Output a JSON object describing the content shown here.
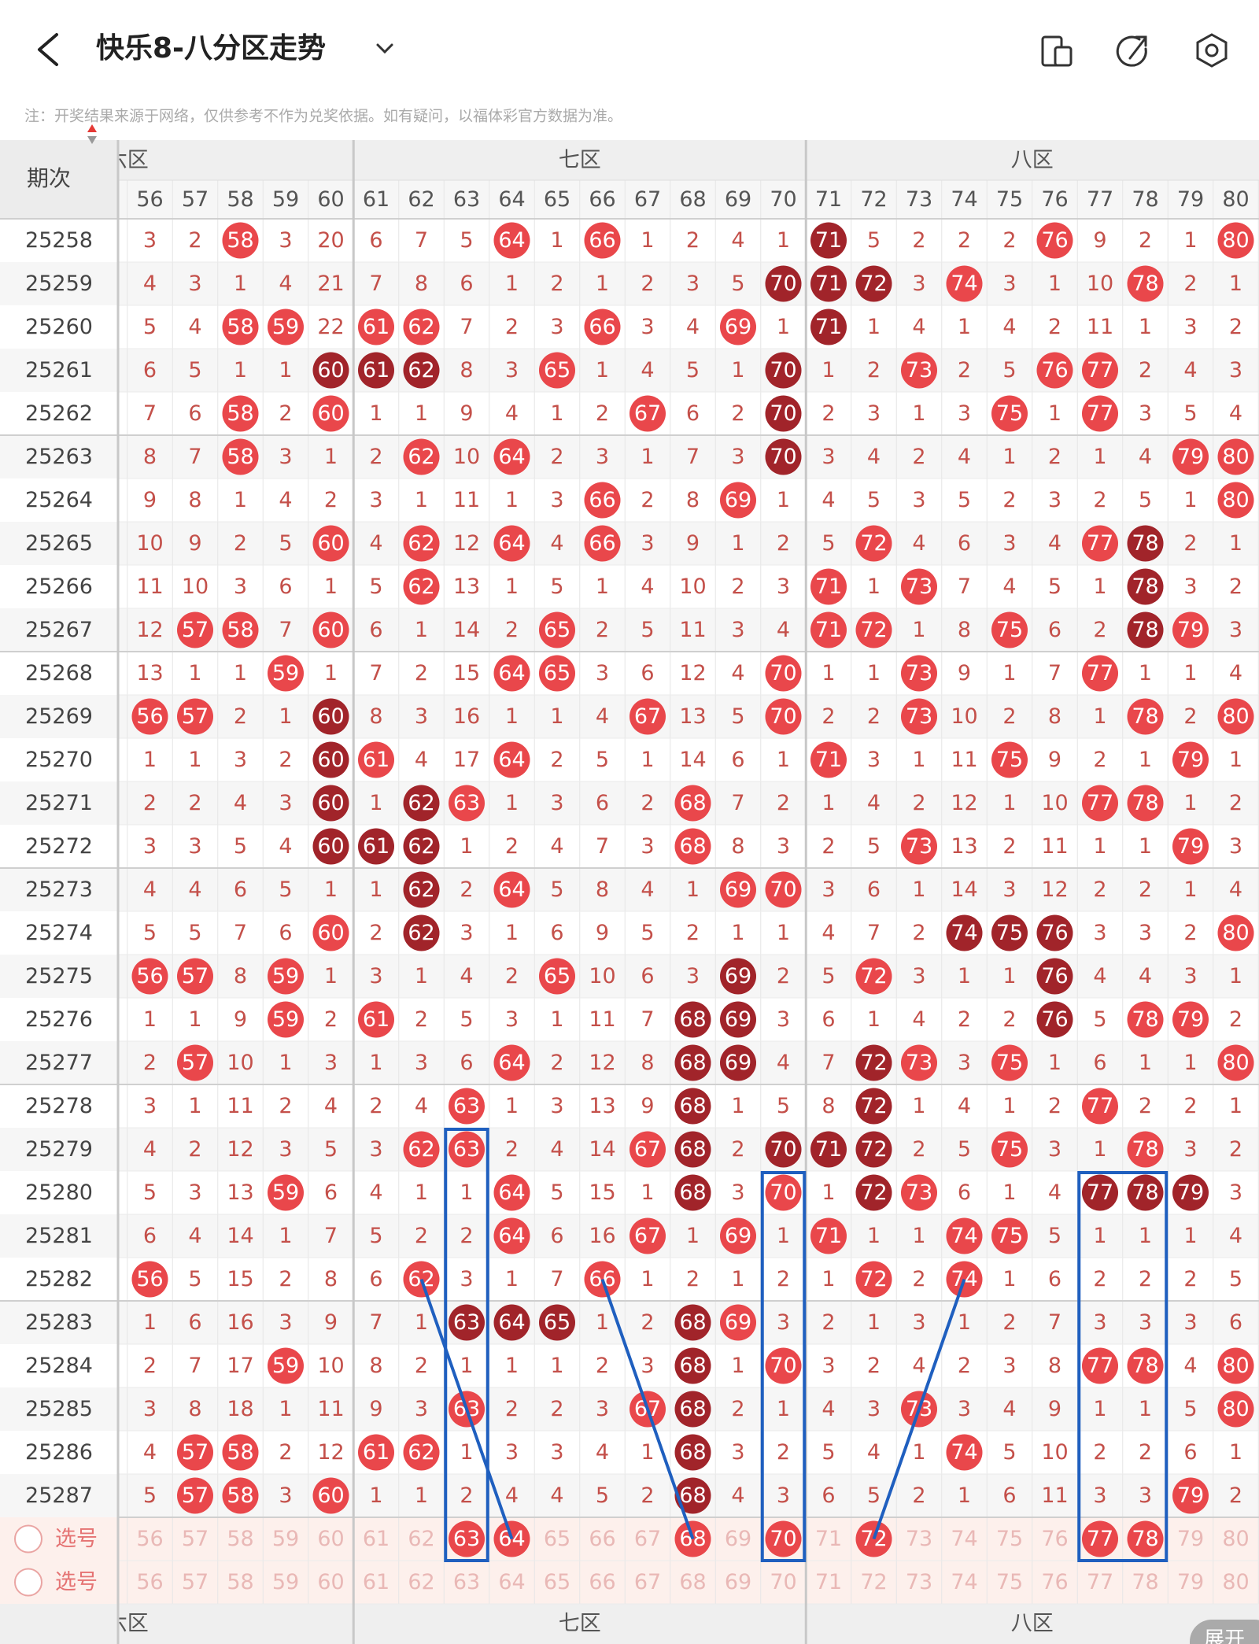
{
  "header": {
    "title": "快乐8-八分区走势"
  },
  "note": "注：开奖结果来源于网络，仅供参考不作为兑奖依据。如有疑问，以福体彩官方数据为准。",
  "table": {
    "period_label": "期次",
    "zones": [
      {
        "name": "六区"
      },
      {
        "name": "七区"
      },
      {
        "name": "八区"
      }
    ],
    "columns": [
      56,
      57,
      58,
      59,
      60,
      61,
      62,
      63,
      64,
      65,
      66,
      67,
      68,
      69,
      70,
      71,
      72,
      73,
      74,
      75,
      76,
      77,
      78,
      79,
      80
    ],
    "rows": [
      {
        "period": "25258",
        "values": [
          3,
          2,
          58,
          3,
          20,
          6,
          7,
          5,
          64,
          1,
          66,
          1,
          2,
          4,
          1,
          71,
          5,
          2,
          2,
          2,
          76,
          9,
          2,
          1,
          80
        ],
        "red": [
          58,
          64,
          66,
          76,
          80
        ],
        "dark": [
          71
        ]
      },
      {
        "period": "25259",
        "values": [
          4,
          3,
          1,
          4,
          21,
          7,
          8,
          6,
          1,
          2,
          1,
          2,
          3,
          5,
          70,
          71,
          72,
          3,
          74,
          3,
          1,
          10,
          78,
          2,
          1
        ],
        "red": [
          74,
          78
        ],
        "dark": [
          70,
          71,
          72
        ]
      },
      {
        "period": "25260",
        "values": [
          5,
          4,
          58,
          59,
          22,
          61,
          62,
          7,
          2,
          3,
          66,
          3,
          4,
          69,
          1,
          71,
          1,
          4,
          1,
          4,
          2,
          11,
          1,
          3,
          2
        ],
        "red": [
          58,
          59,
          61,
          62,
          66,
          69
        ],
        "dark": [
          71
        ]
      },
      {
        "period": "25261",
        "values": [
          6,
          5,
          1,
          1,
          60,
          61,
          62,
          8,
          3,
          65,
          1,
          4,
          5,
          1,
          70,
          1,
          2,
          73,
          2,
          5,
          76,
          77,
          2,
          4,
          3
        ],
        "red": [
          65,
          73,
          76,
          77
        ],
        "dark": [
          60,
          61,
          62,
          70
        ]
      },
      {
        "period": "25262",
        "values": [
          7,
          6,
          58,
          2,
          60,
          1,
          1,
          9,
          4,
          1,
          2,
          67,
          6,
          2,
          70,
          2,
          3,
          1,
          3,
          75,
          1,
          77,
          3,
          5,
          4
        ],
        "red": [
          58,
          60,
          67,
          75,
          77
        ],
        "dark": [
          70
        ]
      },
      {
        "period": "25263",
        "values": [
          8,
          7,
          58,
          3,
          1,
          2,
          62,
          10,
          64,
          2,
          3,
          1,
          7,
          3,
          70,
          3,
          4,
          2,
          4,
          1,
          2,
          1,
          4,
          79,
          80
        ],
        "red": [
          58,
          62,
          64,
          79,
          80
        ],
        "dark": [
          70
        ]
      },
      {
        "period": "25264",
        "values": [
          9,
          8,
          1,
          4,
          2,
          3,
          1,
          11,
          1,
          3,
          66,
          2,
          8,
          69,
          1,
          4,
          5,
          3,
          5,
          2,
          3,
          2,
          5,
          1,
          80
        ],
        "red": [
          66,
          69,
          80
        ],
        "dark": []
      },
      {
        "period": "25265",
        "values": [
          10,
          9,
          2,
          5,
          60,
          4,
          62,
          12,
          64,
          4,
          66,
          3,
          9,
          1,
          2,
          5,
          72,
          4,
          6,
          3,
          4,
          77,
          78,
          2,
          1
        ],
        "red": [
          60,
          62,
          64,
          66,
          72,
          77
        ],
        "dark": [
          78
        ]
      },
      {
        "period": "25266",
        "values": [
          11,
          10,
          3,
          6,
          1,
          5,
          62,
          13,
          1,
          5,
          1,
          4,
          10,
          2,
          3,
          71,
          1,
          73,
          7,
          4,
          5,
          1,
          78,
          3,
          2
        ],
        "red": [
          62,
          71,
          73
        ],
        "dark": [
          78
        ]
      },
      {
        "period": "25267",
        "values": [
          12,
          57,
          58,
          7,
          60,
          6,
          1,
          14,
          2,
          65,
          2,
          5,
          11,
          3,
          4,
          71,
          72,
          1,
          8,
          75,
          6,
          2,
          78,
          79,
          3
        ],
        "red": [
          57,
          58,
          60,
          65,
          71,
          72,
          75,
          79
        ],
        "dark": [
          78
        ]
      },
      {
        "period": "25268",
        "values": [
          13,
          1,
          1,
          59,
          1,
          7,
          2,
          15,
          64,
          65,
          3,
          6,
          12,
          4,
          70,
          1,
          1,
          73,
          9,
          1,
          7,
          77,
          1,
          1,
          4
        ],
        "red": [
          59,
          64,
          65,
          70,
          73,
          77
        ],
        "dark": []
      },
      {
        "period": "25269",
        "values": [
          56,
          57,
          2,
          1,
          60,
          8,
          3,
          16,
          1,
          1,
          4,
          67,
          13,
          5,
          70,
          2,
          2,
          73,
          10,
          2,
          8,
          1,
          78,
          2,
          80
        ],
        "red": [
          56,
          57,
          67,
          70,
          73,
          78,
          80
        ],
        "dark": [
          60
        ]
      },
      {
        "period": "25270",
        "values": [
          1,
          1,
          3,
          2,
          60,
          61,
          4,
          17,
          64,
          2,
          5,
          1,
          14,
          6,
          1,
          71,
          3,
          1,
          11,
          75,
          9,
          2,
          1,
          79,
          1
        ],
        "red": [
          61,
          64,
          71,
          75,
          79
        ],
        "dark": [
          60
        ]
      },
      {
        "period": "25271",
        "values": [
          2,
          2,
          4,
          3,
          60,
          1,
          62,
          63,
          1,
          3,
          6,
          2,
          68,
          7,
          2,
          1,
          4,
          2,
          12,
          1,
          10,
          77,
          78,
          1,
          2
        ],
        "red": [
          63,
          68,
          77,
          78
        ],
        "dark": [
          60,
          62
        ]
      },
      {
        "period": "25272",
        "values": [
          3,
          3,
          5,
          4,
          60,
          61,
          62,
          1,
          2,
          4,
          7,
          3,
          68,
          8,
          3,
          2,
          5,
          73,
          13,
          2,
          11,
          1,
          1,
          79,
          3
        ],
        "red": [
          68,
          73,
          79
        ],
        "dark": [
          60,
          61,
          62
        ]
      },
      {
        "period": "25273",
        "values": [
          4,
          4,
          6,
          5,
          1,
          1,
          62,
          2,
          64,
          5,
          8,
          4,
          1,
          69,
          70,
          3,
          6,
          1,
          14,
          3,
          12,
          2,
          2,
          1,
          4
        ],
        "red": [
          64,
          69,
          70
        ],
        "dark": [
          62
        ]
      },
      {
        "period": "25274",
        "values": [
          5,
          5,
          7,
          6,
          60,
          2,
          62,
          3,
          1,
          6,
          9,
          5,
          2,
          1,
          1,
          4,
          7,
          2,
          74,
          75,
          76,
          3,
          3,
          2,
          80
        ],
        "red": [
          60,
          80
        ],
        "dark": [
          62,
          74,
          75,
          76
        ]
      },
      {
        "period": "25275",
        "values": [
          56,
          57,
          8,
          59,
          1,
          3,
          1,
          4,
          2,
          65,
          10,
          6,
          3,
          69,
          2,
          5,
          72,
          3,
          1,
          1,
          76,
          4,
          4,
          3,
          1
        ],
        "red": [
          56,
          57,
          59,
          65,
          72
        ],
        "dark": [
          69,
          76
        ]
      },
      {
        "period": "25276",
        "values": [
          1,
          1,
          9,
          59,
          2,
          61,
          2,
          5,
          3,
          1,
          11,
          7,
          68,
          69,
          3,
          6,
          1,
          4,
          2,
          2,
          76,
          5,
          78,
          79,
          2
        ],
        "red": [
          59,
          61,
          78,
          79
        ],
        "dark": [
          68,
          69,
          76
        ]
      },
      {
        "period": "25277",
        "values": [
          2,
          57,
          10,
          1,
          3,
          1,
          3,
          6,
          64,
          2,
          12,
          8,
          68,
          69,
          4,
          7,
          72,
          73,
          3,
          75,
          1,
          6,
          1,
          1,
          80
        ],
        "red": [
          57,
          64,
          73,
          75,
          80
        ],
        "dark": [
          68,
          69,
          72
        ]
      },
      {
        "period": "25278",
        "values": [
          3,
          1,
          11,
          2,
          4,
          2,
          4,
          63,
          1,
          3,
          13,
          9,
          68,
          1,
          5,
          8,
          72,
          1,
          4,
          1,
          2,
          77,
          2,
          2,
          1
        ],
        "red": [
          63,
          77
        ],
        "dark": [
          68,
          72
        ]
      },
      {
        "period": "25279",
        "values": [
          4,
          2,
          12,
          3,
          5,
          3,
          62,
          63,
          2,
          4,
          14,
          67,
          68,
          2,
          70,
          71,
          72,
          2,
          5,
          75,
          3,
          1,
          78,
          3,
          2
        ],
        "red": [
          62,
          63,
          67,
          75,
          78
        ],
        "dark": [
          68,
          70,
          71,
          72
        ]
      },
      {
        "period": "25280",
        "values": [
          5,
          3,
          13,
          59,
          6,
          4,
          1,
          1,
          64,
          5,
          15,
          1,
          68,
          3,
          70,
          1,
          72,
          73,
          6,
          1,
          4,
          77,
          78,
          79,
          3
        ],
        "red": [
          59,
          64,
          70,
          73
        ],
        "dark": [
          68,
          72,
          77,
          78,
          79
        ]
      },
      {
        "period": "25281",
        "values": [
          6,
          4,
          14,
          1,
          7,
          5,
          2,
          2,
          64,
          6,
          16,
          67,
          1,
          69,
          1,
          71,
          1,
          1,
          74,
          75,
          5,
          1,
          1,
          1,
          4
        ],
        "red": [
          64,
          67,
          69,
          71,
          74,
          75
        ],
        "dark": []
      },
      {
        "period": "25282",
        "values": [
          56,
          5,
          15,
          2,
          8,
          6,
          62,
          3,
          1,
          7,
          66,
          1,
          2,
          1,
          2,
          1,
          72,
          2,
          74,
          1,
          6,
          2,
          2,
          2,
          5
        ],
        "red": [
          56,
          62,
          66,
          72,
          74
        ],
        "dark": []
      },
      {
        "period": "25283",
        "values": [
          1,
          6,
          16,
          3,
          9,
          7,
          1,
          63,
          64,
          65,
          1,
          2,
          68,
          69,
          3,
          2,
          1,
          3,
          1,
          2,
          7,
          3,
          3,
          3,
          6
        ],
        "red": [
          69
        ],
        "dark": [
          63,
          64,
          65,
          68
        ]
      },
      {
        "period": "25284",
        "values": [
          2,
          7,
          17,
          59,
          10,
          8,
          2,
          1,
          1,
          1,
          2,
          3,
          68,
          1,
          70,
          3,
          2,
          4,
          2,
          3,
          8,
          77,
          78,
          4,
          80
        ],
        "red": [
          59,
          70,
          77,
          78,
          80
        ],
        "dark": [
          68
        ]
      },
      {
        "period": "25285",
        "values": [
          3,
          8,
          18,
          1,
          11,
          9,
          3,
          63,
          2,
          2,
          3,
          67,
          68,
          2,
          1,
          4,
          3,
          73,
          3,
          4,
          9,
          1,
          1,
          5,
          80
        ],
        "red": [
          63,
          67,
          73,
          80
        ],
        "dark": [
          68
        ]
      },
      {
        "period": "25286",
        "values": [
          4,
          57,
          58,
          2,
          12,
          61,
          62,
          1,
          3,
          3,
          4,
          1,
          68,
          3,
          2,
          5,
          4,
          1,
          74,
          5,
          10,
          2,
          2,
          6,
          1
        ],
        "red": [
          57,
          58,
          61,
          62,
          74
        ],
        "dark": [
          68
        ]
      },
      {
        "period": "25287",
        "values": [
          5,
          57,
          58,
          3,
          60,
          1,
          1,
          2,
          4,
          4,
          5,
          2,
          68,
          4,
          3,
          6,
          5,
          2,
          1,
          6,
          11,
          3,
          3,
          79,
          2
        ],
        "red": [
          57,
          58,
          60,
          79
        ],
        "dark": [
          68
        ]
      }
    ],
    "select_label": "选号",
    "select_rows": [
      {
        "picked": [
          63,
          64,
          68,
          70,
          72,
          77,
          78
        ]
      },
      {
        "picked": []
      }
    ]
  },
  "expand_label": "展开"
}
